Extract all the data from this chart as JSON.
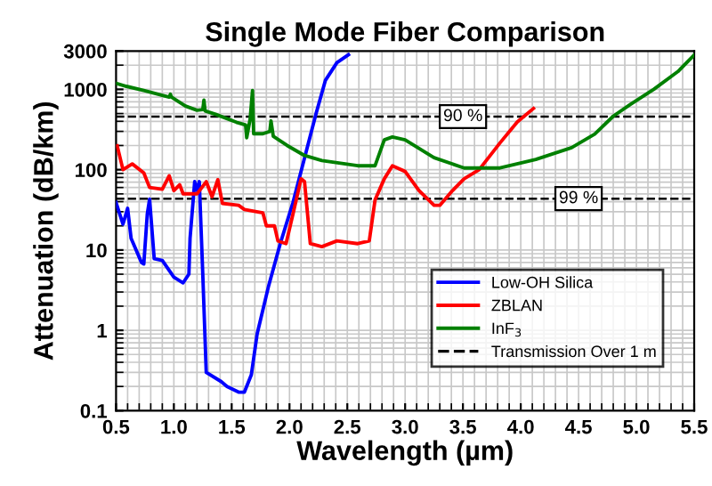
{
  "chart_data": {
    "type": "line",
    "title": "Single Mode Fiber Comparison",
    "xlabel": "Wavelength (µm)",
    "ylabel": "Attenuation (dB/km)",
    "log": "y",
    "xlim": [
      0.5,
      5.5
    ],
    "ylim": [
      0.1,
      3000
    ],
    "xticks": [
      0.5,
      {
        "value": 1,
        "label": "1.0"
      },
      1.5,
      {
        "value": 2,
        "label": "2.0"
      },
      2.5,
      {
        "value": 3,
        "label": "3.0"
      },
      3.5,
      {
        "value": 4,
        "label": "4.0"
      },
      4.5,
      {
        "value": 5,
        "label": "5.0"
      },
      5.5
    ],
    "yticks": [
      {
        "value": 0.1,
        "label": "0.1"
      },
      1,
      10,
      100,
      1000,
      3000
    ],
    "grid": true,
    "legend": "bottom right",
    "line_style": "solid",
    "marker": "none",
    "series": [
      {
        "name": "Low-OH Silica",
        "color": "#0000ff",
        "x": [
          0.5,
          0.56,
          0.6,
          0.63,
          0.72,
          0.74,
          0.77,
          0.79,
          0.83,
          0.9,
          1.0,
          1.08,
          1.13,
          1.14,
          1.18,
          1.2,
          1.22,
          1.25,
          1.28,
          1.41,
          1.46,
          1.56,
          1.61,
          1.67,
          1.72,
          1.82,
          1.92,
          2.03,
          2.13,
          2.23,
          2.31,
          2.41,
          2.51
        ],
        "values": [
          39,
          21,
          33,
          14,
          7,
          6.7,
          28,
          43,
          7.8,
          7.4,
          4.6,
          3.9,
          5,
          14,
          71,
          55,
          71,
          5,
          0.3,
          0.23,
          0.2,
          0.17,
          0.17,
          0.28,
          0.9,
          3.6,
          12,
          39,
          140,
          500,
          1290,
          2150,
          2700
        ]
      },
      {
        "name": "ZBLAN",
        "color": "#ff0000",
        "x": [
          0.51,
          0.56,
          0.64,
          0.74,
          0.79,
          0.9,
          0.96,
          1.0,
          1.05,
          1.08,
          1.2,
          1.28,
          1.33,
          1.38,
          1.42,
          1.56,
          1.61,
          1.77,
          1.8,
          1.87,
          1.9,
          1.97,
          2.03,
          2.1,
          2.13,
          2.18,
          2.28,
          2.41,
          2.59,
          2.69,
          2.74,
          2.82,
          2.89,
          3.0,
          3.12,
          3.25,
          3.3,
          3.41,
          3.51,
          3.64,
          3.82,
          3.97,
          4.11
        ],
        "values": [
          198,
          100,
          118,
          91,
          60,
          57,
          84,
          55,
          65,
          50,
          50,
          71,
          46,
          75,
          38,
          36,
          32,
          29,
          20,
          20,
          13,
          12,
          28,
          77,
          71,
          12,
          11,
          13,
          12,
          13,
          42,
          77,
          112,
          95,
          55,
          36,
          36,
          55,
          77,
          100,
          215,
          392,
          578
        ]
      },
      {
        "name": "InF$_{3}$",
        "color": "#008000",
        "x": [
          0.5,
          0.59,
          0.74,
          0.9,
          0.96,
          0.97,
          0.98,
          1.1,
          1.2,
          1.25,
          1.26,
          1.27,
          1.36,
          1.54,
          1.62,
          1.63,
          1.66,
          1.68,
          1.69,
          1.77,
          1.83,
          1.84,
          1.86,
          1.98,
          2.13,
          2.28,
          2.59,
          2.74,
          2.82,
          2.89,
          3.0,
          3.25,
          3.51,
          3.82,
          4.13,
          4.44,
          4.64,
          4.8,
          4.95,
          5.15,
          5.36,
          5.5
        ],
        "values": [
          1190,
          1090,
          967,
          843,
          800,
          870,
          800,
          620,
          550,
          560,
          735,
          540,
          490,
          390,
          360,
          250,
          430,
          970,
          280,
          280,
          300,
          405,
          260,
          200,
          150,
          130,
          112,
          112,
          235,
          255,
          235,
          141,
          105,
          105,
          134,
          188,
          278,
          464,
          653,
          1000,
          1670,
          2680
        ]
      }
    ],
    "ref_lines": [
      {
        "axis": "y",
        "value": 457.6,
        "color": "#000000",
        "line_style": "dashed"
      },
      {
        "axis": "y",
        "value": 43.6,
        "color": "#000000",
        "line_style": "dashed"
      }
    ],
    "annotations": [
      "Transmission Over 1 m",
      {
        "text": "90 %",
        "x": 3.5,
        "y": 457.6
      },
      {
        "text": "99 %",
        "x": 4.5,
        "y": 43.6
      }
    ]
  }
}
